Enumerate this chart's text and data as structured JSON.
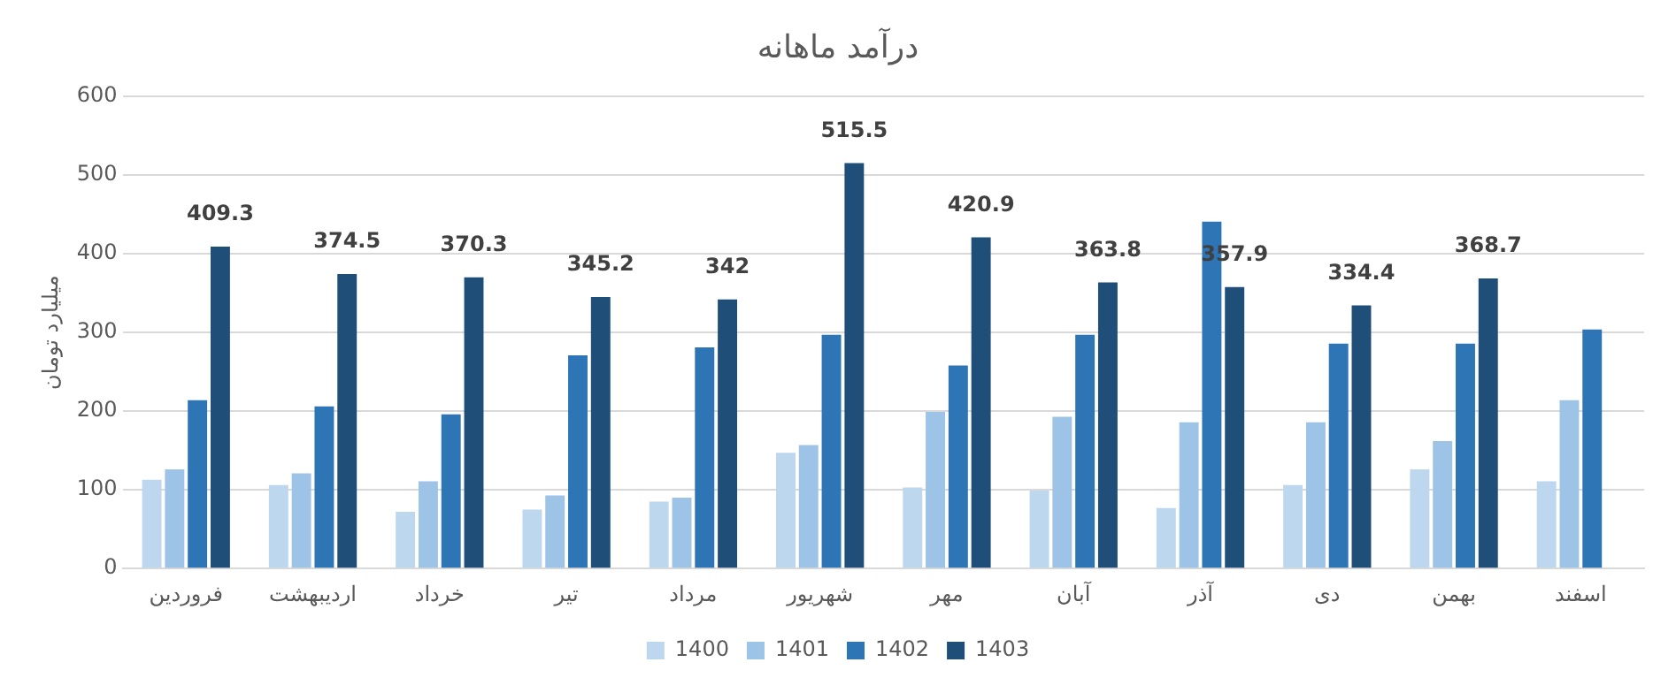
{
  "chart_data": {
    "type": "bar",
    "title": "درآمد ماهانه",
    "ylabel": "میلیارد تومان",
    "categories": [
      "فروردین",
      "اردیبهشت",
      "خرداد",
      "تیر",
      "مرداد",
      "شهریور",
      "مهر",
      "آبان",
      "آذر",
      "دی",
      "بهمن",
      "اسفند"
    ],
    "series": [
      {
        "name": "1400",
        "color": "#bdd7ee",
        "values": [
          113,
          106,
          72,
          75,
          85,
          147,
          103,
          99,
          77,
          106,
          126,
          111
        ]
      },
      {
        "name": "1401",
        "color": "#9dc3e6",
        "values": [
          126,
          121,
          111,
          93,
          90,
          157,
          199,
          193,
          186,
          186,
          162,
          214
        ]
      },
      {
        "name": "1402",
        "color": "#2e75b6",
        "values": [
          214,
          206,
          196,
          271,
          281,
          297,
          258,
          297,
          441,
          286,
          286,
          304
        ]
      },
      {
        "name": "1403",
        "color": "#1f4e79",
        "values": [
          409.3,
          374.5,
          370.3,
          345.2,
          342,
          515.5,
          420.9,
          363.8,
          357.9,
          334.4,
          368.7,
          null
        ],
        "value_labels": [
          "409.3",
          "374.5",
          "370.3",
          "345.2",
          "342",
          "515.5",
          "420.9",
          "363.8",
          "357.9",
          "334.4",
          "368.7",
          null
        ]
      }
    ],
    "ylim": [
      0,
      600
    ],
    "yticks": [
      0,
      100,
      200,
      300,
      400,
      500,
      600
    ],
    "grid": "y",
    "legend": "bottom"
  }
}
